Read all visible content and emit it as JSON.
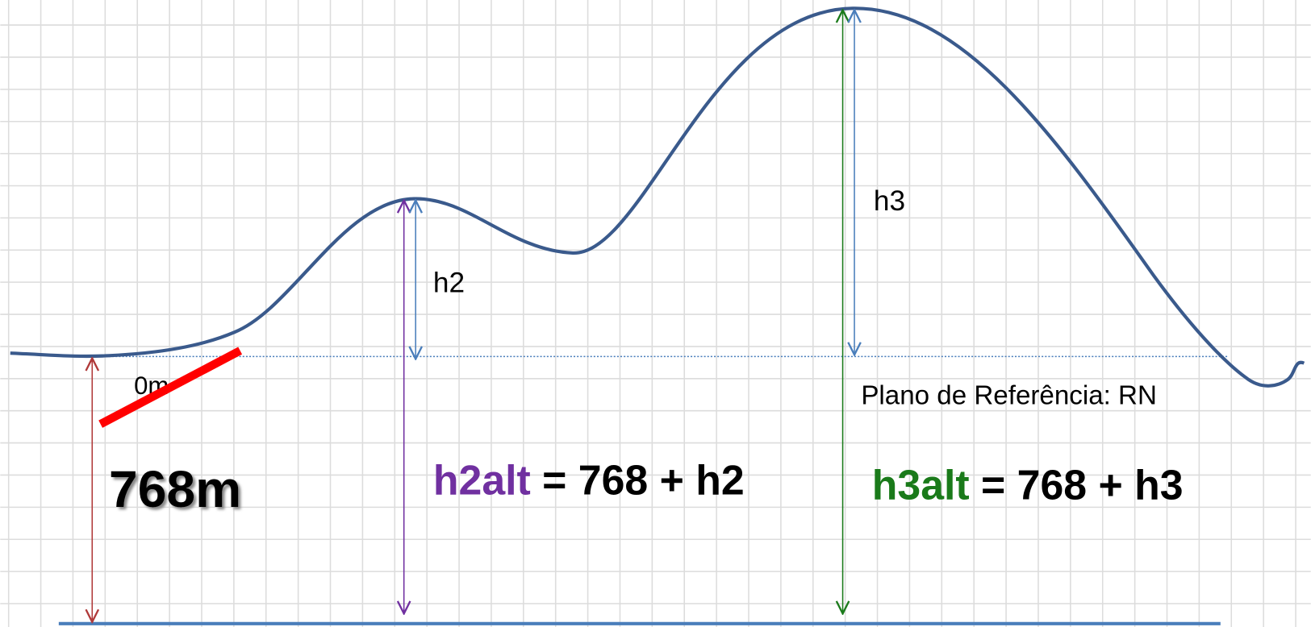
{
  "labels": {
    "h3": "h3",
    "h2": "h2",
    "zero": "0m",
    "reference": "Plano de Referência: RN",
    "base": "768m"
  },
  "formulas": [
    {
      "name": "h2alt",
      "rest": "= 768 + h2"
    },
    {
      "name": "h3alt",
      "rest": "= 768 + h3"
    }
  ]
}
